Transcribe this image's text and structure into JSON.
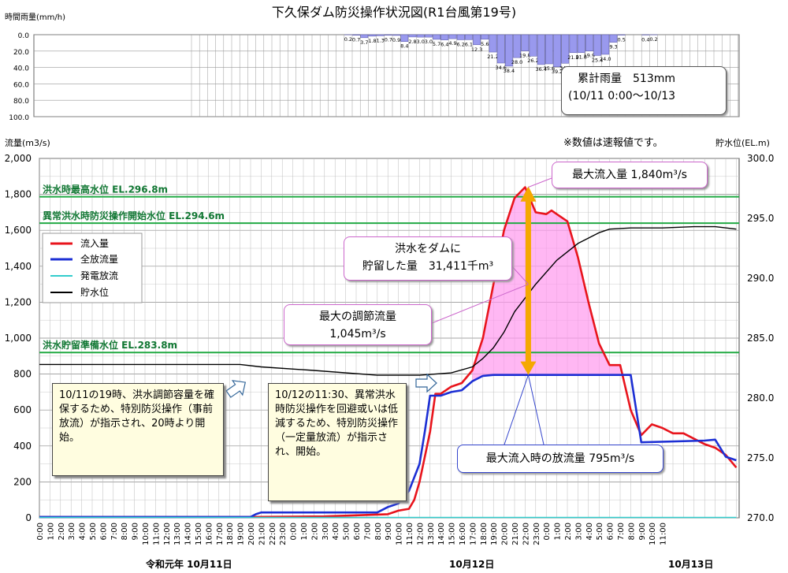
{
  "title": "下久保ダム防災操作状況図(R1台風第19号)",
  "rain_axis_label": "時間雨量(mm/h)",
  "flow_axis_label": "流量(m3/s)",
  "level_axis_label": "貯水位(EL.m)",
  "rain_total": {
    "line1": "累計雨量　513mm",
    "line2": "(10/11 0:00～10/13"
  },
  "note": "※数値は速報値です。",
  "ref_lines": {
    "max_flood": "洪水時最高水位 EL.296.8m",
    "abnormal": "異常洪水時防災操作開始水位 EL.294.6m",
    "prep": "洪水貯留準備水位 EL.283.8m"
  },
  "legend": {
    "inflow": "流入量",
    "outflow": "全放流量",
    "power": "発電放流",
    "level": "貯水位"
  },
  "annotations": {
    "max_inflow": "最大流入量 1,840m³/s",
    "stored_l1": "洪水をダムに",
    "stored_l2": "貯留した量　31,411千m³",
    "max_reg_l1": "最大の調節流量",
    "max_reg_l2": "1,045m³/s",
    "max_outflow": "最大流入時の放流量 795m³/s",
    "box1": "10/11の19時、洪水調節容量を確保するため、特別防災操作（事前放流）が指示され、20時より開始。",
    "box2": "10/12の11:30、異常洪水時防災操作を回避或いは低減するため、特別防災操作（一定量放流）が指示され、開始。"
  },
  "dates": {
    "d1": "令和元年 10月11日",
    "d2": "10月12日",
    "d3": "10月13日"
  },
  "chart_data": [
    {
      "type": "bar",
      "title": "時間雨量(mm/h)",
      "ylabel": "時間雨量(mm/h)",
      "ylim": [
        0,
        100
      ],
      "y_inverted": true,
      "yticks": [
        "0.0",
        "20.0",
        "40.0",
        "60.0",
        "80.0",
        "100.0"
      ],
      "values": [
        0,
        0,
        0,
        0,
        0,
        0,
        0,
        0,
        0,
        0,
        0,
        0,
        0,
        0,
        0,
        0,
        0,
        0,
        0,
        0.2,
        0.7,
        3.7,
        1.8,
        1.3,
        0.7,
        0.9,
        8.4,
        2.8,
        3.0,
        3.0,
        5.7,
        6.4,
        4.9,
        6.2,
        6.1,
        12.3,
        5.6,
        21.2,
        34.6,
        38.4,
        28.0,
        19.8,
        26.2,
        36.4,
        35.6,
        39.2,
        34.9,
        21.9,
        21.8,
        19.9,
        25.4,
        24.0,
        9.3,
        0.5,
        0,
        0,
        0.4,
        0.2,
        0,
        0,
        0,
        0,
        0,
        0,
        0,
        0,
        0,
        0,
        0,
        0,
        0,
        0
      ],
      "labels": [
        "",
        "",
        "",
        "",
        "",
        "",
        "",
        "",
        "",
        "",
        "",
        "",
        "",
        "",
        "",
        "",
        "",
        "",
        "",
        "0.2",
        "0.7",
        "3.7",
        "1.8",
        "1.3",
        "0.7",
        "0.9",
        "8.4",
        "2.8",
        "3.0",
        "3.0",
        "5.7",
        "6.4",
        "4.9",
        "6.2",
        "6.1",
        "12.3",
        "5.6",
        "21.2",
        "34.6",
        "38.4",
        "28.0",
        "19.8",
        "26.2",
        "36.4",
        "35.6",
        "39.2",
        "34.9",
        "21.9",
        "21.8",
        "19.9",
        "25.4",
        "24.0",
        "9.3",
        "0.5",
        "",
        "",
        "0.4",
        "0.2",
        "",
        "",
        "",
        "",
        "",
        "",
        "",
        "",
        "",
        "",
        "",
        "",
        "",
        ""
      ]
    },
    {
      "type": "line",
      "x_ticks": [
        "0:00",
        "1:00",
        "2:00",
        "3:00",
        "4:00",
        "5:00",
        "6:00",
        "7:00",
        "8:00",
        "9:00",
        "10:00",
        "11:00",
        "12:00",
        "13:00",
        "14:00",
        "15:00",
        "16:00",
        "17:00",
        "18:00",
        "19:00",
        "20:00",
        "21:00",
        "22:00",
        "23:00",
        "0:00",
        "1:00",
        "2:00",
        "3:00",
        "4:00",
        "5:00",
        "6:00",
        "7:00",
        "8:00",
        "9:00",
        "10:00",
        "11:00",
        "12:00",
        "13:00",
        "14:00",
        "15:00",
        "16:00",
        "17:00",
        "18:00",
        "19:00",
        "20:00",
        "21:00",
        "22:00",
        "23:00",
        "0:00",
        "1:00",
        "2:00",
        "3:00",
        "4:00",
        "5:00",
        "6:00",
        "7:00",
        "8:00",
        "9:00",
        "10:00",
        "11:00"
      ],
      "y_left": {
        "label": "流量(m3/s)",
        "ylim": [
          0,
          2000
        ],
        "ticks": [
          "0",
          "200",
          "400",
          "600",
          "800",
          "1,000",
          "1,200",
          "1,400",
          "1,600",
          "1,800",
          "2,000"
        ]
      },
      "y_right": {
        "label": "貯水位(EL.m)",
        "ylim": [
          270,
          300
        ],
        "ticks": [
          "270.0",
          "275.0",
          "280.0",
          "285.0",
          "290.0",
          "295.0",
          "300.0"
        ]
      },
      "ref_levels": [
        296.8,
        294.6,
        283.8
      ],
      "series": [
        {
          "name": "流入量",
          "axis": "left",
          "color": "#e8141c",
          "points": [
            [
              0,
              5
            ],
            [
              20,
              5
            ],
            [
              27,
              8
            ],
            [
              33,
              20
            ],
            [
              34,
              40
            ],
            [
              35,
              50
            ],
            [
              35.5,
              100
            ],
            [
              36,
              200
            ],
            [
              37,
              480
            ],
            [
              37.5,
              690
            ],
            [
              38,
              690
            ],
            [
              39,
              730
            ],
            [
              40,
              750
            ],
            [
              41,
              820
            ],
            [
              42,
              1000
            ],
            [
              43,
              1300
            ],
            [
              44,
              1600
            ],
            [
              45,
              1780
            ],
            [
              46,
              1840
            ],
            [
              47,
              1700
            ],
            [
              48,
              1690
            ],
            [
              48.5,
              1710
            ],
            [
              49,
              1690
            ],
            [
              50,
              1650
            ],
            [
              51,
              1450
            ],
            [
              52,
              1200
            ],
            [
              53,
              970
            ],
            [
              54,
              850
            ],
            [
              55,
              850
            ],
            [
              56,
              600
            ],
            [
              57,
              460
            ],
            [
              58,
              520
            ],
            [
              59,
              500
            ],
            [
              60,
              470
            ],
            [
              61,
              470
            ],
            [
              62,
              440
            ],
            [
              63,
              410
            ],
            [
              64,
              390
            ],
            [
              65,
              350
            ],
            [
              66,
              280
            ]
          ]
        },
        {
          "name": "全放流量",
          "axis": "left",
          "color": "#1c2fd4",
          "points": [
            [
              0,
              5
            ],
            [
              18,
              5
            ],
            [
              20,
              5
            ],
            [
              20.5,
              20
            ],
            [
              21,
              30
            ],
            [
              32,
              30
            ],
            [
              33,
              60
            ],
            [
              34,
              80
            ],
            [
              35,
              150
            ],
            [
              36,
              300
            ],
            [
              36.5,
              480
            ],
            [
              37,
              680
            ],
            [
              38,
              680
            ],
            [
              39,
              700
            ],
            [
              40,
              710
            ],
            [
              41,
              760
            ],
            [
              42,
              790
            ],
            [
              43,
              795
            ],
            [
              55,
              795
            ],
            [
              56,
              795
            ],
            [
              57,
              420
            ],
            [
              63,
              430
            ],
            [
              64,
              435
            ],
            [
              65,
              340
            ],
            [
              66,
              320
            ]
          ]
        },
        {
          "name": "発電放流",
          "axis": "left",
          "color": "#33cccc",
          "points": [
            [
              0,
              2
            ],
            [
              66,
              2
            ]
          ]
        },
        {
          "name": "貯水位",
          "axis": "right",
          "color": "#000000",
          "points": [
            [
              0,
              282.8
            ],
            [
              10,
              282.8
            ],
            [
              19,
              282.8
            ],
            [
              21,
              282.6
            ],
            [
              26,
              282.3
            ],
            [
              32,
              281.9
            ],
            [
              36,
              281.9
            ],
            [
              39,
              282.1
            ],
            [
              41,
              282.6
            ],
            [
              42,
              283.3
            ],
            [
              43,
              284.2
            ],
            [
              44,
              285.5
            ],
            [
              45,
              287.2
            ],
            [
              47,
              289.5
            ],
            [
              49,
              291.5
            ],
            [
              51,
              292.9
            ],
            [
              53,
              293.8
            ],
            [
              54,
              294.1
            ],
            [
              56,
              294.2
            ],
            [
              59,
              294.2
            ],
            [
              62,
              294.3
            ],
            [
              64,
              294.3
            ],
            [
              66,
              294.1
            ]
          ]
        }
      ]
    }
  ]
}
